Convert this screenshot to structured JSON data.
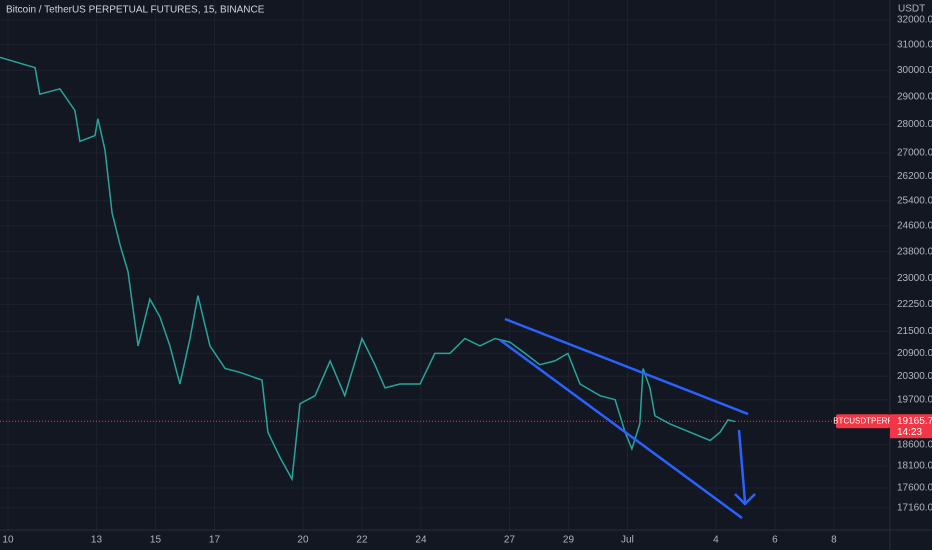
{
  "chart_data": {
    "type": "line",
    "title": "Bitcoin / TetherUS PERPETUAL FUTURES, 15, BINANCE",
    "y_unit": "USDT",
    "log_scale": true,
    "grid": true,
    "color": "#26a69a",
    "x": [
      -0.27,
      0.92,
      1.08,
      1.76,
      2.27,
      2.44,
      2.95,
      3.05,
      3.29,
      3.53,
      3.8,
      4.07,
      4.41,
      4.81,
      5.15,
      5.49,
      5.83,
      6.17,
      6.44,
      6.85,
      7.36,
      7.86,
      8.61,
      8.81,
      9.22,
      9.63,
      9.9,
      10.41,
      10.92,
      11.42,
      12.0,
      12.44,
      12.78,
      13.29,
      13.97,
      14.47,
      14.98,
      15.49,
      16.0,
      16.51,
      17.02,
      17.53,
      18.03,
      18.54,
      18.98,
      19.39,
      20.07,
      20.58,
      20.92,
      21.15,
      21.42,
      21.53,
      21.76,
      21.93,
      22.44,
      23.12,
      23.8,
      24.14,
      24.41,
      24.64
    ],
    "values": [
      30500,
      30100,
      29100,
      29300,
      28500,
      27400,
      27600,
      28200,
      27100,
      25000,
      24000,
      23200,
      21100,
      22400,
      21900,
      21100,
      20100,
      21300,
      22500,
      21100,
      20500,
      20400,
      20200,
      18900,
      18300,
      17800,
      19600,
      19800,
      20700,
      19800,
      21300,
      20600,
      20000,
      20100,
      20100,
      20900,
      20900,
      21300,
      21100,
      21300,
      21200,
      20900,
      20600,
      20700,
      20900,
      20100,
      19800,
      19700,
      18900,
      18500,
      19100,
      20500,
      20000,
      19300,
      19100,
      18900,
      18700,
      18900,
      19200,
      19160
    ],
    "xlim": [
      -0.27,
      29.9
    ],
    "xticks": [
      {
        "value": 0,
        "label": "10"
      },
      {
        "value": 3,
        "label": "13"
      },
      {
        "value": 5,
        "label": "15"
      },
      {
        "value": 7,
        "label": "17"
      },
      {
        "value": 10,
        "label": "20"
      },
      {
        "value": 12,
        "label": "22"
      },
      {
        "value": 14,
        "label": "24"
      },
      {
        "value": 17,
        "label": "27"
      },
      {
        "value": 19,
        "label": "29"
      },
      {
        "value": 21,
        "label": "Jul"
      },
      {
        "value": 24,
        "label": "4"
      },
      {
        "value": 26,
        "label": "6"
      },
      {
        "value": 28,
        "label": "8"
      }
    ],
    "ylim": [
      16680,
      32820
    ],
    "yticks": [
      {
        "value": 32000,
        "label": "32000.0"
      },
      {
        "value": 31000,
        "label": "31000.0"
      },
      {
        "value": 30000,
        "label": "30000.0"
      },
      {
        "value": 29000,
        "label": "29000.0"
      },
      {
        "value": 28000,
        "label": "28000.0"
      },
      {
        "value": 27000,
        "label": "27000.0"
      },
      {
        "value": 26200,
        "label": "26200.0"
      },
      {
        "value": 25400,
        "label": "25400.0"
      },
      {
        "value": 24600,
        "label": "24600.0"
      },
      {
        "value": 23800,
        "label": "23800.0"
      },
      {
        "value": 23000,
        "label": "23000.0"
      },
      {
        "value": 22250,
        "label": "22250.0"
      },
      {
        "value": 21500,
        "label": "21500.0"
      },
      {
        "value": 20900,
        "label": "20900.0"
      },
      {
        "value": 20300,
        "label": "20300.0"
      },
      {
        "value": 19700,
        "label": "19700.0"
      },
      {
        "value": 18600,
        "label": "18600.0"
      },
      {
        "value": 18100,
        "label": "18100.0"
      },
      {
        "value": 17600,
        "label": "17600.0"
      },
      {
        "value": 17160,
        "label": "17160.0"
      }
    ],
    "last_price": 19165.7,
    "symbol_tag": "BTCUSDTPERP",
    "countdown": "14:23",
    "last_price_color": "#f23645"
  }
}
